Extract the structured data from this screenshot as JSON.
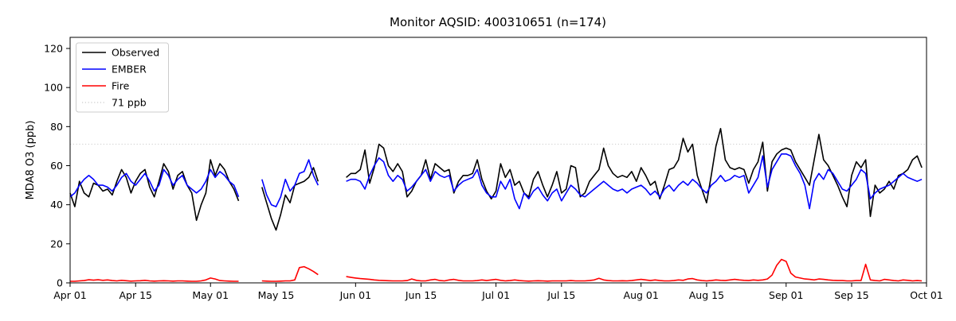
{
  "figure": {
    "title": "Monitor AQSID: 400310651 (n=174)",
    "ylabel": "MDA8 O3 (ppb)"
  },
  "chart_data": {
    "type": "line",
    "title": "Monitor AQSID: 400310651 (n=174)",
    "xlabel": "",
    "ylabel": "MDA8 O3 (ppb)",
    "n_points": 174,
    "x_total_days": 183,
    "x_start_date": "Apr 01",
    "x_end_date": "Oct 01",
    "ylim": [
      0,
      125.7
    ],
    "grid": false,
    "legend_position": "upper left",
    "legend": [
      "Observed",
      "EMBER",
      "Fire",
      "71 ppb"
    ],
    "ytick_values": [
      0,
      20,
      40,
      60,
      80,
      100,
      120
    ],
    "xtick_labels": [
      "Apr 01",
      "Apr 15",
      "May 01",
      "May 15",
      "Jun 01",
      "Jun 15",
      "Jul 01",
      "Jul 15",
      "Aug 01",
      "Aug 15",
      "Sep 01",
      "Sep 15",
      "Oct 01"
    ],
    "xtick_days": [
      0,
      14,
      30,
      44,
      61,
      75,
      91,
      105,
      122,
      136,
      153,
      167,
      183
    ],
    "reference_line": {
      "label": "71 ppb",
      "value": 71,
      "color": "#d3d3d3",
      "style": "dotted"
    },
    "missing_day_ranges": [
      "May 08-May 11",
      "May 25-May 29"
    ],
    "series": [
      {
        "name": "Observed",
        "color": "#000000",
        "values": [
          46,
          39,
          52,
          46,
          44,
          51,
          50,
          47,
          48,
          45,
          52,
          58,
          54,
          46,
          52,
          56,
          58,
          49,
          44,
          52,
          61,
          57,
          48,
          55,
          57,
          50,
          46,
          32,
          40,
          46,
          63,
          55,
          61,
          58,
          52,
          48,
          42,
          null,
          null,
          null,
          null,
          49,
          41,
          33,
          27,
          35,
          45,
          41,
          50,
          51,
          52,
          54,
          59,
          52,
          null,
          null,
          null,
          null,
          null,
          54,
          56,
          56,
          58,
          68,
          51,
          59,
          71,
          69,
          60,
          57,
          61,
          57,
          44,
          47,
          52,
          55,
          63,
          53,
          61,
          59,
          57,
          58,
          46,
          52,
          55,
          55,
          56,
          63,
          53,
          47,
          43,
          47,
          61,
          54,
          58,
          50,
          52,
          46,
          44,
          53,
          57,
          50,
          44,
          50,
          57,
          46,
          48,
          60,
          59,
          44,
          46,
          52,
          55,
          58,
          69,
          60,
          56,
          54,
          55,
          54,
          57,
          52,
          59,
          55,
          50,
          52,
          43,
          50,
          58,
          59,
          63,
          74,
          67,
          71,
          55,
          48,
          41,
          55,
          70,
          79,
          63,
          59,
          58,
          59,
          58,
          51,
          58,
          62,
          72,
          47,
          62,
          66,
          68,
          69,
          68,
          62,
          58,
          54,
          50,
          63,
          76,
          63,
          60,
          55,
          50,
          44,
          39,
          55,
          62,
          59,
          63,
          34,
          50,
          46,
          48,
          52,
          48,
          55,
          56,
          58,
          63,
          65,
          59
        ]
      },
      {
        "name": "EMBER",
        "color": "#0000ff",
        "values": [
          44,
          46,
          50,
          53,
          55,
          53,
          50,
          50,
          49,
          47,
          50,
          54,
          56,
          52,
          50,
          53,
          56,
          52,
          47,
          50,
          58,
          55,
          50,
          53,
          55,
          50,
          48,
          46,
          48,
          52,
          58,
          54,
          57,
          55,
          52,
          50,
          44,
          null,
          null,
          null,
          null,
          53,
          45,
          40,
          39,
          44,
          53,
          47,
          50,
          56,
          57,
          63,
          55,
          50,
          null,
          null,
          null,
          null,
          null,
          52,
          53,
          53,
          52,
          48,
          55,
          60,
          64,
          62,
          55,
          52,
          55,
          53,
          47,
          49,
          52,
          55,
          58,
          52,
          57,
          55,
          54,
          55,
          47,
          50,
          52,
          53,
          54,
          58,
          50,
          46,
          44,
          44,
          52,
          48,
          53,
          43,
          38,
          46,
          43,
          47,
          49,
          45,
          42,
          46,
          48,
          42,
          46,
          50,
          48,
          45,
          44,
          46,
          48,
          50,
          52,
          50,
          48,
          47,
          48,
          46,
          48,
          49,
          50,
          48,
          45,
          47,
          44,
          48,
          50,
          47,
          50,
          52,
          50,
          53,
          51,
          48,
          46,
          50,
          52,
          55,
          52,
          53,
          55,
          54,
          55,
          46,
          50,
          54,
          65,
          49,
          58,
          62,
          66,
          66,
          65,
          60,
          56,
          50,
          38,
          52,
          56,
          53,
          58,
          56,
          52,
          48,
          47,
          50,
          53,
          58,
          56,
          43,
          46,
          48,
          49,
          50,
          52,
          54,
          56,
          54,
          53,
          52,
          53
        ]
      },
      {
        "name": "Fire",
        "color": "#ff0000",
        "values": [
          0.8,
          0.8,
          1,
          1.2,
          1.6,
          1.4,
          1.6,
          1.3,
          1.5,
          1.2,
          1,
          1.3,
          1.1,
          0.9,
          1,
          1.1,
          1.3,
          1,
          0.9,
          1,
          1.1,
          1,
          0.9,
          1,
          1,
          0.9,
          0.8,
          0.8,
          1,
          1.5,
          2.5,
          2,
          1.2,
          1,
          0.9,
          0.8,
          0.8,
          null,
          null,
          null,
          null,
          1,
          0.9,
          0.8,
          0.8,
          0.9,
          1,
          1,
          1.5,
          7.8,
          8.3,
          7.2,
          5.8,
          4.2,
          null,
          null,
          null,
          null,
          null,
          3.2,
          2.8,
          2.5,
          2.2,
          2,
          1.8,
          1.5,
          1.3,
          1.2,
          1.1,
          1,
          1,
          1,
          1.2,
          2,
          1.3,
          1,
          1,
          1.5,
          1.8,
          1.2,
          1,
          1.5,
          1.8,
          1.3,
          1,
          1,
          1,
          1.2,
          1.5,
          1.2,
          1.5,
          1.8,
          1.3,
          1,
          1.2,
          1.5,
          1.2,
          1,
          0.9,
          1,
          1.1,
          1,
          0.9,
          1,
          1,
          1,
          1,
          1.2,
          1,
          1,
          1,
          1.2,
          1.5,
          2.3,
          1.5,
          1.2,
          1,
          1,
          1.1,
          1,
          1.2,
          1.5,
          1.8,
          1.5,
          1.2,
          1.5,
          1.2,
          1,
          1,
          1.2,
          1.5,
          1.3,
          2,
          2.2,
          1.5,
          1.2,
          1,
          1.2,
          1.5,
          1.3,
          1.2,
          1.5,
          1.8,
          1.5,
          1.3,
          1.2,
          1.5,
          1.3,
          1.5,
          2,
          4,
          9,
          12,
          11,
          5,
          3,
          2.5,
          2,
          1.8,
          1.5,
          2,
          1.8,
          1.5,
          1.3,
          1.2,
          1.2,
          1,
          1,
          1.2,
          1.2,
          9.5,
          1.5,
          1.2,
          1,
          1.8,
          1.5,
          1.2,
          1,
          1.5,
          1.3,
          1,
          1.2,
          1
        ]
      }
    ]
  }
}
